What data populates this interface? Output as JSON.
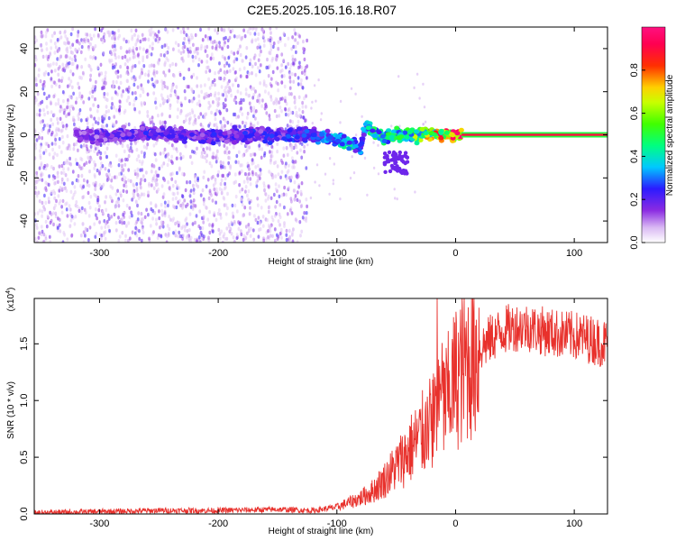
{
  "title": "C2E5.2025.105.16.18.R07",
  "chart_data": [
    {
      "type": "heatmap",
      "xlabel": "Height of straight line (km)",
      "ylabel": "Frequency (Hz)",
      "xlim": [
        -355,
        128
      ],
      "ylim": [
        -50,
        50
      ],
      "xticks": [
        -300,
        -200,
        -100,
        0,
        100
      ],
      "yticks": [
        -40,
        -20,
        0,
        20,
        40
      ],
      "grid": false,
      "colorbar": {
        "label": "Normalized spectral amplitude",
        "range": [
          0,
          1
        ],
        "ticks": [
          0.0,
          0.2,
          0.4,
          0.6,
          0.8
        ],
        "tick_labels": [
          "0.0",
          "0.2",
          "0.4",
          "0.6",
          "0.8"
        ],
        "colormap": "rainbow (white-violet-blue-cyan-green-yellow-red-magenta)"
      },
      "description_series": {
        "noise_region_x": [
          -355,
          -125
        ],
        "noise_region_y": [
          -50,
          50
        ],
        "central_band": [
          [
            -320,
            0,
            0.15
          ],
          [
            -300,
            -1,
            0.18
          ],
          [
            -280,
            0,
            0.2
          ],
          [
            -260,
            1,
            0.22
          ],
          [
            -240,
            0,
            0.2
          ],
          [
            -220,
            0,
            0.2
          ],
          [
            -200,
            -1,
            0.22
          ],
          [
            -180,
            0,
            0.23
          ],
          [
            -160,
            0,
            0.22
          ],
          [
            -140,
            0,
            0.25
          ],
          [
            -120,
            0,
            0.25
          ],
          [
            -100,
            -2,
            0.35
          ],
          [
            -90,
            -4,
            0.4
          ],
          [
            -80,
            -6,
            0.3
          ],
          [
            -75,
            6,
            0.35
          ],
          [
            -70,
            2,
            0.45
          ],
          [
            -60,
            -2,
            0.45
          ],
          [
            -50,
            0,
            0.5
          ],
          [
            -40,
            0,
            0.55
          ],
          [
            -30,
            0,
            0.6
          ],
          [
            -20,
            1,
            0.7
          ],
          [
            -10,
            0,
            0.8
          ],
          [
            0,
            0,
            0.85
          ],
          [
            10,
            0,
            0.95
          ],
          [
            60,
            0,
            0.95
          ],
          [
            128,
            0,
            0.95
          ]
        ]
      }
    },
    {
      "type": "line",
      "xlabel": "Height of straight line (km)",
      "ylabel": "SNR (10 * v/v)",
      "yscale_label": "(x10",
      "yscale_exp": "4",
      "xlim": [
        -355,
        128
      ],
      "ylim": [
        0,
        1.9
      ],
      "xticks": [
        -300,
        -200,
        -100,
        0,
        100
      ],
      "yticks": [
        0.0,
        0.5,
        1.0,
        1.5
      ],
      "ytick_labels": [
        "0.0",
        "0.5",
        "1.0",
        "1.5"
      ],
      "grid": false,
      "color": "#e8312c",
      "series": [
        {
          "x": [
            -355,
            -300,
            -250,
            -200,
            -150,
            -120,
            -100,
            -90,
            -80,
            -70,
            -60,
            -50,
            -40,
            -30,
            -20,
            -15,
            -10,
            0,
            10,
            20,
            30,
            40,
            50,
            60,
            70,
            80,
            90,
            100,
            110,
            120,
            128
          ],
          "y": [
            0.01,
            0.02,
            0.03,
            0.03,
            0.04,
            0.03,
            0.06,
            0.1,
            0.14,
            0.2,
            0.3,
            0.42,
            0.55,
            0.68,
            0.8,
            1.1,
            0.95,
            1.2,
            1.35,
            1.45,
            1.55,
            1.62,
            1.65,
            1.65,
            1.62,
            1.6,
            1.58,
            1.57,
            1.55,
            1.52,
            1.5
          ]
        }
      ]
    }
  ]
}
